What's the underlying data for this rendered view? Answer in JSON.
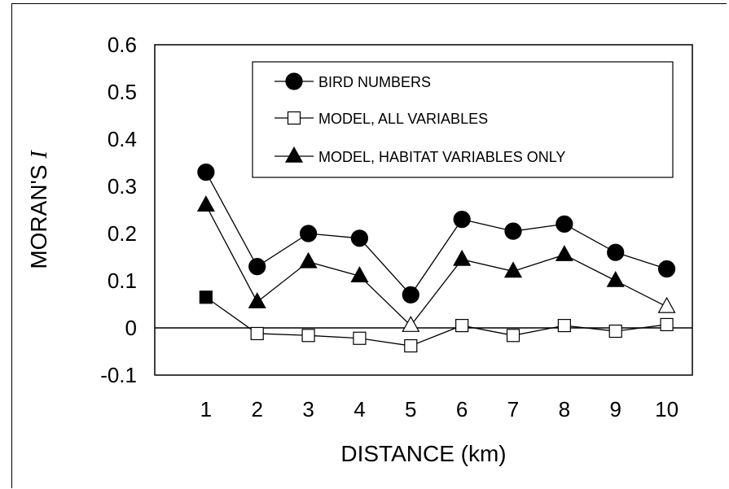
{
  "chart_data": {
    "type": "line",
    "xlabel": "DISTANCE (km)",
    "ylabel_prefix": "MORAN'S ",
    "ylabel_italic": "I",
    "categories": [
      "1",
      "2",
      "3",
      "4",
      "5",
      "6",
      "7",
      "8",
      "9",
      "10"
    ],
    "y_ticks": [
      "0.6",
      "0.5",
      "0.4",
      "0.3",
      "0.2",
      "0.1",
      "0",
      "-0.1"
    ],
    "ylim": [
      -0.1,
      0.6
    ],
    "grid": false,
    "legend_position": "top-right",
    "series": [
      {
        "name": "BIRD NUMBERS",
        "marker": "circle",
        "values": [
          0.33,
          0.13,
          0.2,
          0.19,
          0.07,
          0.23,
          0.205,
          0.22,
          0.16,
          0.125
        ],
        "filled": [
          true,
          true,
          true,
          true,
          true,
          true,
          true,
          true,
          true,
          true
        ]
      },
      {
        "name": "MODEL, ALL VARIABLES",
        "marker": "square",
        "values": [
          0.065,
          -0.012,
          -0.016,
          -0.022,
          -0.038,
          0.005,
          -0.016,
          0.005,
          -0.007,
          0.007
        ],
        "filled": [
          true,
          false,
          false,
          false,
          false,
          false,
          false,
          false,
          false,
          false
        ]
      },
      {
        "name": "MODEL, HABITAT VARIABLES ONLY",
        "marker": "triangle",
        "values": [
          0.26,
          0.055,
          0.14,
          0.11,
          0.005,
          0.145,
          0.12,
          0.155,
          0.1,
          0.045
        ],
        "filled": [
          true,
          true,
          true,
          true,
          false,
          true,
          true,
          true,
          true,
          false
        ]
      }
    ],
    "colors": {
      "line": "#000000",
      "fill": "#000000",
      "hollow": "#ffffff"
    }
  }
}
